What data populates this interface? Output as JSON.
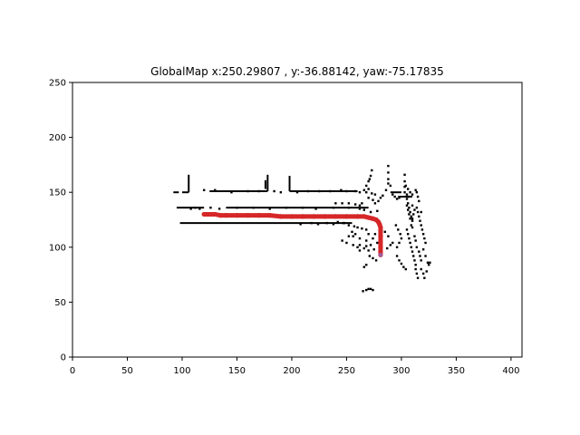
{
  "chart_data": {
    "type": "scatter",
    "title": "GlobalMap x:250.29807 , y:-36.88142, yaw:-75.17835",
    "xlabel": "",
    "ylabel": "",
    "xlim": [
      0,
      410
    ],
    "ylim": [
      0,
      250
    ],
    "x_ticks": [
      0,
      50,
      100,
      150,
      200,
      250,
      300,
      350,
      400
    ],
    "y_ticks": [
      0,
      50,
      100,
      150,
      200,
      250
    ],
    "grid": false,
    "colors": {
      "map_points": "#000000",
      "trajectory": "#d62728",
      "trajectory_end": "#9467bd"
    },
    "series": [
      {
        "map_segments": [
          [
            [
              92,
              150
            ],
            [
              97,
              150
            ]
          ],
          [
            [
              106,
              150
            ],
            [
              106,
              166
            ]
          ],
          [
            [
              100,
              150
            ],
            [
              106,
              150
            ]
          ],
          [
            [
              125,
              151
            ],
            [
              178,
              151
            ]
          ],
          [
            [
              178,
              151
            ],
            [
              178,
              166
            ]
          ],
          [
            [
              176,
              153
            ],
            [
              176,
              161
            ]
          ],
          [
            [
              198,
              151
            ],
            [
              198,
              165
            ]
          ],
          [
            [
              198,
              151
            ],
            [
              260,
              151
            ]
          ],
          [
            [
              95,
              136
            ],
            [
              120,
              136
            ]
          ],
          [
            [
              140,
              136
            ],
            [
              270,
              136
            ]
          ],
          [
            [
              98,
              122
            ],
            [
              255,
              122
            ]
          ],
          [
            [
              290,
              150
            ],
            [
              300,
              150
            ]
          ],
          [
            [
              297,
              146
            ],
            [
              310,
              146
            ]
          ]
        ],
        "map_points": [
          [
            120,
            152
          ],
          [
            130,
            152
          ],
          [
            145,
            150
          ],
          [
            160,
            151
          ],
          [
            170,
            151
          ],
          [
            184,
            151
          ],
          [
            190,
            150
          ],
          [
            205,
            150
          ],
          [
            215,
            151
          ],
          [
            225,
            151
          ],
          [
            235,
            151
          ],
          [
            245,
            152
          ],
          [
            250,
            151
          ],
          [
            258,
            151
          ],
          [
            262,
            150
          ],
          [
            266,
            152
          ],
          [
            270,
            153
          ],
          [
            273,
            149
          ],
          [
            276,
            148
          ],
          [
            108,
            135
          ],
          [
            112,
            136
          ],
          [
            116,
            135
          ],
          [
            126,
            136
          ],
          [
            134,
            135
          ],
          [
            150,
            136
          ],
          [
            165,
            136
          ],
          [
            180,
            135
          ],
          [
            195,
            136
          ],
          [
            210,
            136
          ],
          [
            222,
            135
          ],
          [
            238,
            136
          ],
          [
            252,
            136
          ],
          [
            262,
            135
          ],
          [
            266,
            134
          ],
          [
            272,
            132
          ],
          [
            278,
            133
          ],
          [
            208,
            121
          ],
          [
            218,
            122
          ],
          [
            224,
            121
          ],
          [
            232,
            122
          ],
          [
            238,
            121
          ],
          [
            242,
            123
          ],
          [
            248,
            122
          ],
          [
            268,
            156
          ],
          [
            270,
            160
          ],
          [
            272,
            165
          ],
          [
            273,
            170
          ],
          [
            271,
            162
          ],
          [
            268,
            150
          ],
          [
            270,
            145
          ],
          [
            274,
            143
          ],
          [
            276,
            140
          ],
          [
            279,
            142
          ],
          [
            281,
            145
          ],
          [
            283,
            147
          ],
          [
            262,
            138
          ],
          [
            264,
            140
          ],
          [
            258,
            139
          ],
          [
            252,
            140
          ],
          [
            246,
            140
          ],
          [
            240,
            140
          ],
          [
            247,
            122
          ],
          [
            252,
            120
          ],
          [
            257,
            119
          ],
          [
            260,
            118
          ],
          [
            264,
            117
          ],
          [
            268,
            116
          ],
          [
            252,
            110
          ],
          [
            256,
            110
          ],
          [
            262,
            108
          ],
          [
            268,
            106
          ],
          [
            274,
            108
          ],
          [
            280,
            108
          ],
          [
            246,
            106
          ],
          [
            250,
            104
          ],
          [
            256,
            102
          ],
          [
            262,
            102
          ],
          [
            268,
            101
          ],
          [
            272,
            102
          ],
          [
            260,
            100
          ],
          [
            266,
            99
          ],
          [
            270,
            97
          ],
          [
            275,
            98
          ],
          [
            262,
            97
          ],
          [
            255,
            114
          ],
          [
            258,
            112
          ],
          [
            270,
            112
          ],
          [
            276,
            112
          ],
          [
            285,
            114
          ],
          [
            288,
            110
          ],
          [
            278,
            104
          ],
          [
            282,
            100
          ],
          [
            287,
            99
          ],
          [
            290,
            102
          ],
          [
            292,
            104
          ],
          [
            271,
            92
          ],
          [
            274,
            90
          ],
          [
            277,
            88
          ],
          [
            268,
            84
          ],
          [
            266,
            82
          ],
          [
            288,
            174
          ],
          [
            288,
            168
          ],
          [
            288,
            162
          ],
          [
            288,
            158
          ],
          [
            290,
            156
          ],
          [
            286,
            152
          ],
          [
            292,
            148
          ],
          [
            294,
            146
          ],
          [
            296,
            144
          ],
          [
            298,
            145
          ],
          [
            303,
            166
          ],
          [
            303,
            160
          ],
          [
            303,
            155
          ],
          [
            303,
            150
          ],
          [
            305,
            148
          ],
          [
            307,
            146
          ],
          [
            304,
            156
          ],
          [
            306,
            153
          ],
          [
            308,
            150
          ],
          [
            310,
            148
          ],
          [
            305,
            144
          ],
          [
            306,
            140
          ],
          [
            307,
            136
          ],
          [
            308,
            132
          ],
          [
            309,
            128
          ],
          [
            310,
            124
          ],
          [
            305,
            138
          ],
          [
            306,
            134
          ],
          [
            307,
            130
          ],
          [
            308,
            126
          ],
          [
            309,
            120
          ],
          [
            310,
            118
          ],
          [
            305,
            116
          ],
          [
            306,
            112
          ],
          [
            307,
            108
          ],
          [
            308,
            104
          ],
          [
            309,
            100
          ],
          [
            310,
            96
          ],
          [
            311,
            92
          ],
          [
            312,
            88
          ],
          [
            313,
            84
          ],
          [
            313,
            80
          ],
          [
            314,
            76
          ],
          [
            315,
            72
          ],
          [
            312,
            110
          ],
          [
            313,
            106
          ],
          [
            314,
            100
          ],
          [
            316,
            96
          ],
          [
            317,
            92
          ],
          [
            318,
            88
          ],
          [
            314,
            136
          ],
          [
            315,
            132
          ],
          [
            316,
            128
          ],
          [
            317,
            124
          ],
          [
            318,
            120
          ],
          [
            319,
            116
          ],
          [
            316,
            142
          ],
          [
            315,
            146
          ],
          [
            314,
            150
          ],
          [
            313,
            152
          ],
          [
            318,
            132
          ],
          [
            320,
            112
          ],
          [
            321,
            108
          ],
          [
            322,
            104
          ],
          [
            320,
            98
          ],
          [
            322,
            92
          ],
          [
            324,
            86
          ],
          [
            295,
            120
          ],
          [
            297,
            116
          ],
          [
            299,
            112
          ],
          [
            300,
            108
          ],
          [
            298,
            104
          ],
          [
            296,
            100
          ],
          [
            296,
            92
          ],
          [
            298,
            88
          ],
          [
            300,
            85
          ],
          [
            302,
            82
          ],
          [
            304,
            80
          ],
          [
            318,
            80
          ],
          [
            320,
            76
          ],
          [
            321,
            72
          ],
          [
            323,
            78
          ],
          [
            325,
            84
          ],
          [
            326,
            86
          ],
          [
            310,
            138
          ],
          [
            312,
            134
          ],
          [
            311,
            130
          ],
          [
            310,
            126
          ],
          [
            265,
            60
          ],
          [
            268,
            61
          ],
          [
            270,
            62
          ],
          [
            272,
            62
          ],
          [
            274,
            61
          ]
        ]
      },
      {
        "name": "",
        "trajectory": [
          [
            120,
            130
          ],
          [
            125,
            130
          ],
          [
            130,
            130
          ],
          [
            135,
            129
          ],
          [
            140,
            129
          ],
          [
            150,
            129
          ],
          [
            160,
            129
          ],
          [
            170,
            129
          ],
          [
            180,
            129
          ],
          [
            190,
            128
          ],
          [
            200,
            128
          ],
          [
            210,
            128
          ],
          [
            220,
            128
          ],
          [
            230,
            128
          ],
          [
            240,
            128
          ],
          [
            250,
            128
          ],
          [
            260,
            128
          ],
          [
            266,
            128
          ],
          [
            270,
            127
          ],
          [
            274,
            126
          ],
          [
            277,
            125
          ],
          [
            279,
            123
          ],
          [
            280,
            121
          ],
          [
            281,
            118
          ],
          [
            281,
            115
          ],
          [
            281,
            110
          ],
          [
            281,
            105
          ],
          [
            281,
            100
          ],
          [
            281,
            96
          ],
          [
            281,
            93
          ]
        ]
      }
    ]
  }
}
